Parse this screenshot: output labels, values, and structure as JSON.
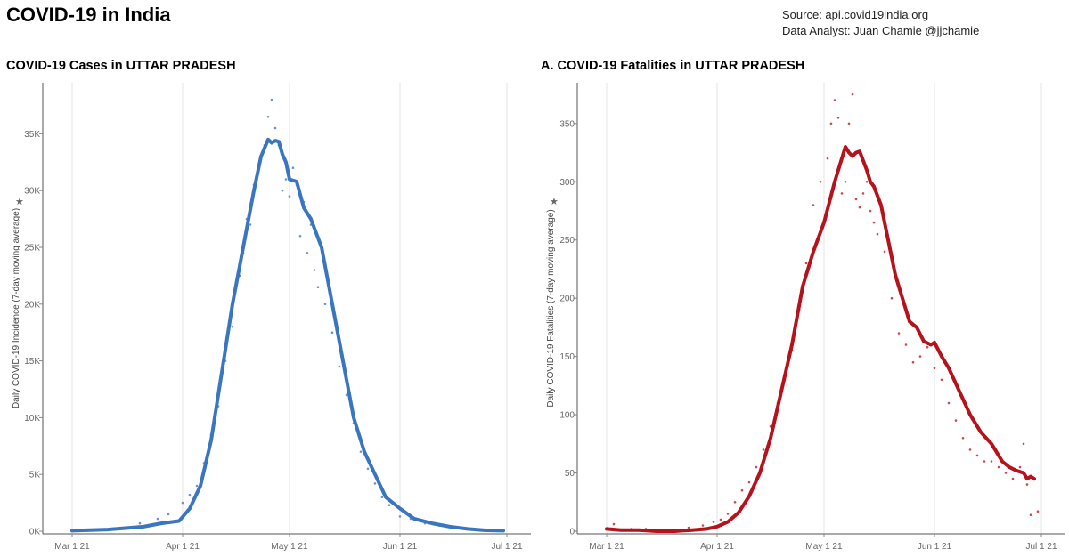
{
  "header": {
    "title": "COVID-19 in India",
    "source": "Source: api.covid19india.org",
    "analyst": "Data Analyst:  Juan Chamie @jjchamie"
  },
  "chart_data": [
    {
      "type": "line",
      "title": "COVID-19 Cases in UTTAR PRADESH",
      "ylabel": "Daily COVID-19 Incidence (7-day moving average)",
      "xlabel": "",
      "x_ticks": [
        "Mar 1 21",
        "Apr 1 21",
        "May 1 21",
        "Jun 1 21",
        "Jul 1 21"
      ],
      "y_ticks": [
        "0K",
        "5K",
        "10K",
        "15K",
        "20K",
        "25K",
        "30K",
        "35K"
      ],
      "y_tick_values": [
        0,
        5000,
        10000,
        15000,
        20000,
        25000,
        30000,
        35000
      ],
      "xlim": [
        "2021-03-01",
        "2021-07-01"
      ],
      "ylim": [
        0,
        39500
      ],
      "grid": "vertical",
      "line_color": "#3a75c0",
      "dot_color": "#6b93cc",
      "series": [
        {
          "x": [
            "2021-03-01",
            "2021-03-11",
            "2021-03-21",
            "2021-03-26",
            "2021-03-31",
            "2021-04-03",
            "2021-04-06",
            "2021-04-09",
            "2021-04-12",
            "2021-04-15",
            "2021-04-18",
            "2021-04-21",
            "2021-04-23",
            "2021-04-25",
            "2021-04-26",
            "2021-04-27",
            "2021-04-28",
            "2021-04-29",
            "2021-04-30",
            "2021-05-01",
            "2021-05-03",
            "2021-05-05",
            "2021-05-07",
            "2021-05-10",
            "2021-05-13",
            "2021-05-16",
            "2021-05-19",
            "2021-05-22",
            "2021-05-25",
            "2021-05-28",
            "2021-06-01",
            "2021-06-05",
            "2021-06-10",
            "2021-06-15",
            "2021-06-20",
            "2021-06-25",
            "2021-06-30"
          ],
          "values": [
            50,
            150,
            400,
            700,
            900,
            2000,
            4000,
            8000,
            14000,
            20000,
            25000,
            30000,
            33000,
            34500,
            34200,
            34400,
            34300,
            33200,
            32500,
            31000,
            30800,
            28500,
            27500,
            25000,
            20000,
            15000,
            10000,
            7000,
            5000,
            3000,
            2000,
            1100,
            700,
            400,
            200,
            80,
            50
          ]
        },
        {
          "x": [
            "2021-03-15",
            "2021-03-20",
            "2021-03-25",
            "2021-03-28",
            "2021-04-01",
            "2021-04-03",
            "2021-04-05",
            "2021-04-07",
            "2021-04-09",
            "2021-04-11",
            "2021-04-13",
            "2021-04-15",
            "2021-04-17",
            "2021-04-18",
            "2021-04-19",
            "2021-04-20",
            "2021-04-21",
            "2021-04-22",
            "2021-04-23",
            "2021-04-24",
            "2021-04-25",
            "2021-04-26",
            "2021-04-27",
            "2021-04-28",
            "2021-04-29",
            "2021-04-30",
            "2021-05-01",
            "2021-05-02",
            "2021-05-03",
            "2021-05-04",
            "2021-05-05",
            "2021-05-06",
            "2021-05-07",
            "2021-05-08",
            "2021-05-09",
            "2021-05-11",
            "2021-05-13",
            "2021-05-15",
            "2021-05-17",
            "2021-05-19",
            "2021-05-21",
            "2021-05-23",
            "2021-05-25",
            "2021-05-27",
            "2021-05-29",
            "2021-06-01",
            "2021-06-04",
            "2021-06-08",
            "2021-06-12",
            "2021-06-16",
            "2021-06-20",
            "2021-06-25",
            "2021-06-29"
          ],
          "values": [
            300,
            700,
            1100,
            1500,
            2500,
            3200,
            4000,
            6000,
            8500,
            11000,
            15000,
            18000,
            22500,
            24500,
            27500,
            27000,
            30500,
            31500,
            33000,
            34000,
            36500,
            38000,
            35500,
            34000,
            30000,
            31000,
            29500,
            32000,
            30500,
            26000,
            29000,
            24500,
            27000,
            23000,
            21500,
            20000,
            17500,
            14500,
            12000,
            9500,
            7000,
            5500,
            4200,
            3000,
            2300,
            1300,
            1100,
            700,
            500,
            300,
            150,
            80,
            40
          ]
        }
      ]
    },
    {
      "type": "line",
      "title": "A. COVID-19 Fatalities in UTTAR PRADESH",
      "ylabel": "Daily COVID-19 Fatalities (7-day moving average)",
      "xlabel": "",
      "x_ticks": [
        "Mar 1 21",
        "Apr 1 21",
        "May 1 21",
        "Jun 1 21",
        "Jul 1 21"
      ],
      "y_ticks": [
        "0",
        "50",
        "100",
        "150",
        "200",
        "250",
        "300",
        "350"
      ],
      "y_tick_values": [
        0,
        50,
        100,
        150,
        200,
        250,
        300,
        350
      ],
      "xlim": [
        "2021-03-01",
        "2021-07-01"
      ],
      "ylim": [
        0,
        385
      ],
      "grid": "vertical",
      "line_color": "#b5121b",
      "dot_color": "#cc4a50",
      "series": [
        {
          "x": [
            "2021-03-01",
            "2021-03-05",
            "2021-03-10",
            "2021-03-15",
            "2021-03-20",
            "2021-03-25",
            "2021-03-29",
            "2021-04-01",
            "2021-04-04",
            "2021-04-07",
            "2021-04-10",
            "2021-04-13",
            "2021-04-16",
            "2021-04-19",
            "2021-04-22",
            "2021-04-25",
            "2021-04-28",
            "2021-05-01",
            "2021-05-04",
            "2021-05-06",
            "2021-05-07",
            "2021-05-08",
            "2021-05-09",
            "2021-05-10",
            "2021-05-11",
            "2021-05-12",
            "2021-05-13",
            "2021-05-14",
            "2021-05-15",
            "2021-05-17",
            "2021-05-19",
            "2021-05-21",
            "2021-05-23",
            "2021-05-25",
            "2021-05-27",
            "2021-05-29",
            "2021-05-31",
            "2021-06-01",
            "2021-06-03",
            "2021-06-05",
            "2021-06-08",
            "2021-06-11",
            "2021-06-14",
            "2021-06-17",
            "2021-06-20",
            "2021-06-22",
            "2021-06-24",
            "2021-06-26",
            "2021-06-27",
            "2021-06-28",
            "2021-06-29"
          ],
          "values": [
            2,
            1,
            1,
            0,
            0,
            1,
            2,
            4,
            8,
            16,
            30,
            50,
            80,
            120,
            160,
            210,
            240,
            265,
            300,
            320,
            330,
            325,
            322,
            325,
            326,
            318,
            310,
            300,
            296,
            280,
            250,
            220,
            200,
            180,
            175,
            163,
            160,
            162,
            150,
            140,
            120,
            100,
            85,
            75,
            60,
            55,
            52,
            50,
            45,
            47,
            45
          ]
        },
        {
          "x": [
            "2021-03-03",
            "2021-03-08",
            "2021-03-12",
            "2021-03-18",
            "2021-03-24",
            "2021-03-28",
            "2021-03-31",
            "2021-04-02",
            "2021-04-04",
            "2021-04-06",
            "2021-04-08",
            "2021-04-10",
            "2021-04-12",
            "2021-04-14",
            "2021-04-16",
            "2021-04-18",
            "2021-04-20",
            "2021-04-22",
            "2021-04-24",
            "2021-04-26",
            "2021-04-28",
            "2021-04-30",
            "2021-05-02",
            "2021-05-03",
            "2021-05-04",
            "2021-05-05",
            "2021-05-06",
            "2021-05-07",
            "2021-05-08",
            "2021-05-09",
            "2021-05-10",
            "2021-05-11",
            "2021-05-12",
            "2021-05-13",
            "2021-05-14",
            "2021-05-15",
            "2021-05-16",
            "2021-05-18",
            "2021-05-20",
            "2021-05-22",
            "2021-05-24",
            "2021-05-26",
            "2021-05-28",
            "2021-05-30",
            "2021-06-01",
            "2021-06-03",
            "2021-06-05",
            "2021-06-07",
            "2021-06-09",
            "2021-06-11",
            "2021-06-13",
            "2021-06-15",
            "2021-06-17",
            "2021-06-19",
            "2021-06-21",
            "2021-06-23",
            "2021-06-25",
            "2021-06-26",
            "2021-06-27",
            "2021-06-28",
            "2021-06-29",
            "2021-06-30"
          ],
          "values": [
            6,
            2,
            2,
            1,
            3,
            5,
            8,
            10,
            15,
            25,
            35,
            42,
            55,
            70,
            90,
            110,
            130,
            155,
            190,
            230,
            280,
            300,
            320,
            350,
            370,
            355,
            290,
            300,
            350,
            375,
            285,
            278,
            290,
            300,
            275,
            265,
            255,
            240,
            200,
            170,
            160,
            145,
            150,
            158,
            140,
            130,
            110,
            95,
            80,
            70,
            65,
            60,
            60,
            55,
            50,
            45,
            55,
            75,
            40,
            14,
            45,
            17
          ]
        }
      ]
    }
  ]
}
